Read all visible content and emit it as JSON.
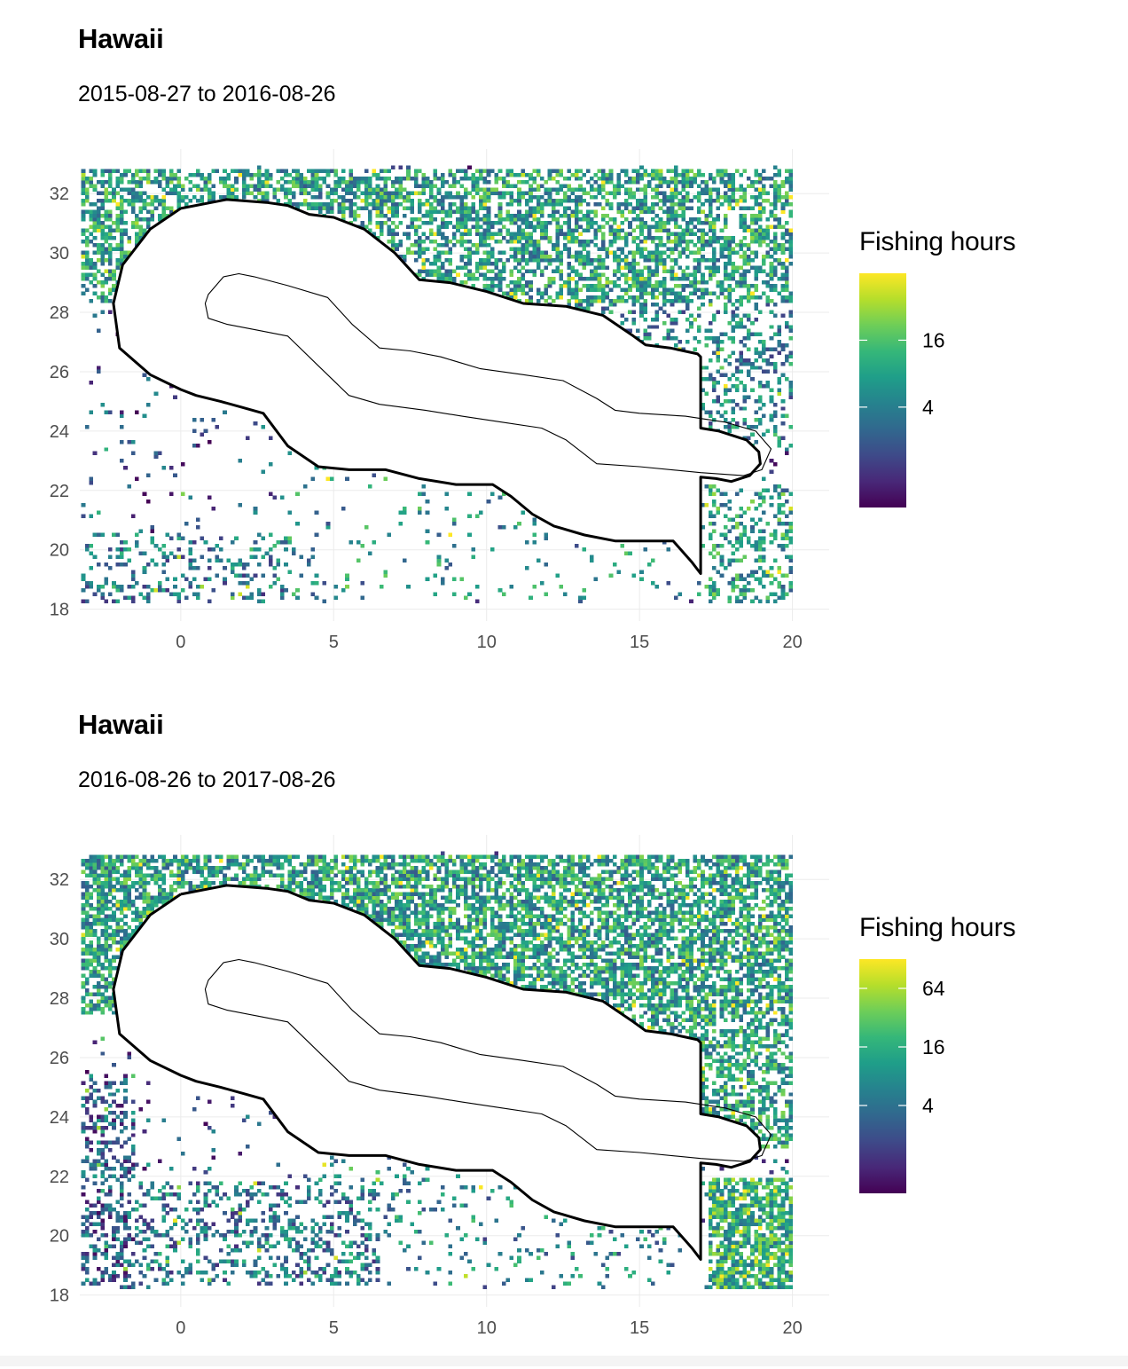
{
  "chart_data": [
    {
      "type": "heatmap",
      "title": "Hawaii",
      "subtitle": "2015-08-27 to 2016-08-26",
      "xlabel": "",
      "ylabel": "",
      "xlim": [
        -3.3,
        21.2
      ],
      "ylim": [
        17.6,
        33.5
      ],
      "x_ticks": [
        0,
        5,
        10,
        15,
        20
      ],
      "y_ticks": [
        18,
        20,
        22,
        24,
        26,
        28,
        30,
        32
      ],
      "grid": true,
      "legend": {
        "title": "Fishing hours",
        "position": "right",
        "scale": "log",
        "range": [
          0.5,
          64
        ],
        "tick_values": [
          4,
          16
        ],
        "tick_labels": [
          "4",
          "16"
        ]
      },
      "colormap": "viridis",
      "zones": [
        {
          "x": [
            -3.2,
            20.0
          ],
          "y": [
            28.3,
            32.8
          ],
          "density": 0.55,
          "level": 0.55
        },
        {
          "x": [
            12.0,
            20.0
          ],
          "y": [
            23.5,
            28.5
          ],
          "density": 0.3,
          "level": 0.45
        },
        {
          "x": [
            -3.2,
            3.5
          ],
          "y": [
            18.2,
            20.6
          ],
          "density": 0.22,
          "level": 0.4
        },
        {
          "x": [
            3.5,
            18.0
          ],
          "y": [
            18.3,
            23.5
          ],
          "density": 0.06,
          "level": 0.5
        },
        {
          "x": [
            17.2,
            20.0
          ],
          "y": [
            18.2,
            22.2
          ],
          "density": 0.35,
          "level": 0.55
        }
      ]
    },
    {
      "type": "heatmap",
      "title": "Hawaii",
      "subtitle": "2016-08-26 to 2017-08-26",
      "xlabel": "",
      "ylabel": "",
      "xlim": [
        -3.3,
        21.2
      ],
      "ylim": [
        17.6,
        33.5
      ],
      "x_ticks": [
        0,
        5,
        10,
        15,
        20
      ],
      "y_ticks": [
        18,
        20,
        22,
        24,
        26,
        28,
        30,
        32
      ],
      "grid": true,
      "legend": {
        "title": "Fishing hours",
        "position": "right",
        "scale": "log",
        "range": [
          0.5,
          128
        ],
        "tick_values": [
          4,
          16,
          64
        ],
        "tick_labels": [
          "4",
          "16",
          "64"
        ]
      },
      "colormap": "viridis",
      "zones": [
        {
          "x": [
            -3.2,
            20.0
          ],
          "y": [
            27.5,
            32.8
          ],
          "density": 0.68,
          "level": 0.55
        },
        {
          "x": [
            12.0,
            20.0
          ],
          "y": [
            23.0,
            29.5
          ],
          "density": 0.55,
          "level": 0.55
        },
        {
          "x": [
            -3.2,
            -1.5
          ],
          "y": [
            18.2,
            25.5
          ],
          "density": 0.4,
          "level": 0.3
        },
        {
          "x": [
            -3.2,
            6.5
          ],
          "y": [
            18.3,
            21.8
          ],
          "density": 0.28,
          "level": 0.4
        },
        {
          "x": [
            4.0,
            16.5
          ],
          "y": [
            18.3,
            23.0
          ],
          "density": 0.1,
          "level": 0.45
        },
        {
          "x": [
            17.2,
            20.0
          ],
          "y": [
            18.2,
            22.0
          ],
          "density": 0.75,
          "level": 0.62
        }
      ]
    }
  ],
  "boundary_outer": [
    [
      0.0,
      31.5
    ],
    [
      1.5,
      31.8
    ],
    [
      2.8,
      31.7
    ],
    [
      3.5,
      31.6
    ],
    [
      4.2,
      31.3
    ],
    [
      5.0,
      31.2
    ],
    [
      6.0,
      30.8
    ],
    [
      7.0,
      30.0
    ],
    [
      7.8,
      29.1
    ],
    [
      8.8,
      29.0
    ],
    [
      10.0,
      28.7
    ],
    [
      11.2,
      28.3
    ],
    [
      12.6,
      28.2
    ],
    [
      13.8,
      27.9
    ],
    [
      14.8,
      27.2
    ],
    [
      15.2,
      26.9
    ],
    [
      16.0,
      26.8
    ],
    [
      16.9,
      26.6
    ],
    [
      17.0,
      26.5
    ],
    [
      17.0,
      24.1
    ],
    [
      17.6,
      24.0
    ],
    [
      18.5,
      23.7
    ],
    [
      18.9,
      23.3
    ],
    [
      18.95,
      22.9
    ],
    [
      18.6,
      22.5
    ],
    [
      18.0,
      22.3
    ],
    [
      17.5,
      22.4
    ],
    [
      17.0,
      22.45
    ],
    [
      17.0,
      19.2
    ],
    [
      16.7,
      19.6
    ],
    [
      16.1,
      20.3
    ],
    [
      15.2,
      20.3
    ],
    [
      14.2,
      20.3
    ],
    [
      13.2,
      20.5
    ],
    [
      12.2,
      20.8
    ],
    [
      11.5,
      21.2
    ],
    [
      10.8,
      21.8
    ],
    [
      10.2,
      22.2
    ],
    [
      9.0,
      22.2
    ],
    [
      7.8,
      22.4
    ],
    [
      6.7,
      22.7
    ],
    [
      5.5,
      22.7
    ],
    [
      4.5,
      22.8
    ],
    [
      3.5,
      23.5
    ],
    [
      2.7,
      24.6
    ],
    [
      2.0,
      24.8
    ],
    [
      1.3,
      25.0
    ],
    [
      0.5,
      25.2
    ],
    [
      0.0,
      25.4
    ],
    [
      -1.0,
      25.9
    ],
    [
      -2.0,
      26.8
    ],
    [
      -2.2,
      28.3
    ],
    [
      -1.9,
      29.6
    ],
    [
      -1.0,
      30.8
    ],
    [
      0.0,
      31.5
    ]
  ],
  "boundary_inner": [
    [
      1.4,
      29.2
    ],
    [
      1.9,
      29.3
    ],
    [
      2.4,
      29.2
    ],
    [
      3.5,
      28.9
    ],
    [
      4.8,
      28.5
    ],
    [
      5.6,
      27.6
    ],
    [
      6.5,
      26.8
    ],
    [
      7.5,
      26.7
    ],
    [
      8.5,
      26.5
    ],
    [
      9.8,
      26.1
    ],
    [
      11.2,
      25.9
    ],
    [
      12.5,
      25.7
    ],
    [
      13.6,
      25.1
    ],
    [
      14.2,
      24.7
    ],
    [
      15.0,
      24.6
    ],
    [
      16.5,
      24.5
    ],
    [
      17.8,
      24.3
    ],
    [
      18.8,
      24.0
    ],
    [
      19.3,
      23.4
    ],
    [
      19.0,
      22.7
    ],
    [
      18.4,
      22.5
    ],
    [
      17.0,
      22.6
    ],
    [
      15.0,
      22.8
    ],
    [
      13.6,
      22.9
    ],
    [
      12.6,
      23.7
    ],
    [
      11.8,
      24.1
    ],
    [
      10.5,
      24.3
    ],
    [
      9.2,
      24.5
    ],
    [
      8.0,
      24.7
    ],
    [
      6.5,
      24.9
    ],
    [
      5.5,
      25.2
    ],
    [
      4.5,
      26.2
    ],
    [
      3.5,
      27.2
    ],
    [
      2.5,
      27.4
    ],
    [
      1.5,
      27.6
    ],
    [
      0.9,
      27.8
    ],
    [
      0.8,
      28.3
    ],
    [
      0.9,
      28.6
    ],
    [
      1.4,
      29.2
    ]
  ]
}
